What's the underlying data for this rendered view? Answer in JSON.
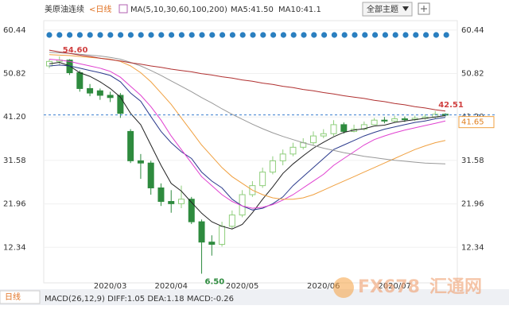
{
  "chart_data": {
    "type": "candlestick",
    "title": "美原油连续",
    "period": "<日线",
    "indicator": "MA(5,10,30,60,100,200)",
    "legend_texts": [
      "MA5:41.50",
      "MA10:41.1"
    ],
    "theme_button": "全部主题",
    "categories": [
      null,
      null,
      null,
      null,
      null,
      null,
      "2020/03",
      null,
      null,
      null,
      null,
      null,
      "2020/04",
      null,
      null,
      null,
      null,
      null,
      null,
      "2020/05",
      null,
      null,
      null,
      null,
      null,
      null,
      null,
      "2020/06",
      null,
      null,
      null,
      null,
      null,
      null,
      "2020/07",
      null,
      null,
      null,
      null,
      null
    ],
    "open": [
      52.5,
      53.5,
      53.8,
      51,
      47.5,
      47,
      46,
      46,
      38,
      31.5,
      31,
      25.5,
      22.5,
      22,
      23,
      18,
      13.5,
      13,
      17,
      19.5,
      24,
      26,
      29,
      31.5,
      33,
      34.5,
      35.5,
      37,
      37.5,
      39.5,
      38,
      38.5,
      39.5,
      40.5,
      40.3,
      40.8,
      40.6,
      40.9,
      41.2,
      41.8
    ],
    "high": [
      54,
      54.6,
      54,
      51.5,
      48.5,
      47.5,
      46.8,
      46.5,
      38.5,
      33,
      31.5,
      26.5,
      25,
      26,
      23.5,
      18.5,
      15,
      18,
      20.5,
      25,
      27,
      30,
      32.5,
      34,
      35.5,
      36.5,
      38,
      38.5,
      40.5,
      40,
      39.5,
      40.2,
      41,
      41.2,
      41.5,
      41.3,
      41.5,
      41.8,
      42.51,
      42
    ],
    "low": [
      52,
      52.8,
      50.5,
      46.8,
      45.8,
      45,
      44.5,
      41,
      31,
      27.5,
      24,
      21.5,
      20,
      21,
      17.5,
      6.5,
      10.5,
      12.5,
      16.5,
      19,
      23.5,
      25.5,
      28.5,
      30.5,
      32.5,
      34,
      35,
      36.5,
      37,
      37.5,
      37.8,
      38.2,
      39.5,
      39.8,
      40,
      40.1,
      40.3,
      40.6,
      40.9,
      41.3
    ],
    "close": [
      53.5,
      53.8,
      51,
      47.5,
      46.5,
      46,
      45.5,
      42,
      31.5,
      31,
      25.5,
      22.5,
      22,
      23,
      18,
      13.5,
      13,
      17,
      19.5,
      24,
      26,
      29,
      31.5,
      33,
      34.5,
      35.5,
      37,
      37.5,
      39.5,
      38,
      38.5,
      39.5,
      40.5,
      40.3,
      40.8,
      40.6,
      40.9,
      41.2,
      41.8,
      41.65
    ],
    "up_color": "#8fce7c",
    "down_color": "#2e8b3e",
    "series": [
      {
        "color": "#222222",
        "values": [
          53,
          53.3,
          52.5,
          51,
          50.2,
          49,
          47.5,
          45.6,
          42,
          39.5,
          35,
          30.5,
          26.5,
          24.8,
          22.3,
          19.9,
          18,
          17,
          16.4,
          17.4,
          20,
          23,
          25.7,
          28.7,
          30.8,
          32.6,
          34.3,
          35.6,
          36.8,
          37.8,
          38.3,
          38.6,
          39.2,
          39.4,
          40,
          40.3,
          40.6,
          40.9,
          41.2,
          41.5
        ]
      },
      {
        "color": "#2b3a8c",
        "values": [
          52.5,
          52.7,
          52.5,
          52,
          51.5,
          51,
          50.4,
          49,
          46.5,
          44.7,
          41.3,
          38,
          35.5,
          33.5,
          32,
          29,
          27,
          25.5,
          23,
          21.5,
          20.6,
          21,
          22,
          23.5,
          26,
          28,
          30,
          32,
          34,
          35,
          36,
          37,
          37.8,
          38.5,
          39,
          39.5,
          40,
          40.3,
          40.8,
          41.1
        ]
      },
      {
        "color": "#e040d0",
        "values": [
          54,
          53.8,
          53.5,
          53,
          52.5,
          52,
          51.3,
          50,
          48,
          46,
          43.5,
          40.5,
          37,
          34,
          31,
          28,
          26,
          24,
          22.5,
          21.5,
          21,
          21.2,
          21.8,
          22.8,
          24,
          25.5,
          27,
          28.5,
          30.5,
          32,
          33.5,
          35,
          36.2,
          37,
          37.7,
          38.3,
          38.8,
          39.3,
          39.8,
          40.3
        ]
      },
      {
        "color": "#f0a040",
        "values": [
          55,
          54.9,
          54.8,
          54.6,
          54.4,
          54.2,
          54,
          53.5,
          52.5,
          51,
          49,
          46.5,
          44,
          41,
          38,
          35,
          32.5,
          30,
          28,
          26.5,
          25,
          24,
          23.3,
          23,
          23,
          23.3,
          24,
          25,
          26,
          27,
          28,
          29,
          30,
          31,
          32,
          33,
          34,
          34.8,
          35.5,
          36
        ]
      },
      {
        "color": "#999999",
        "values": [
          55.5,
          55.4,
          55.3,
          55.1,
          54.9,
          54.7,
          54.4,
          54,
          53.3,
          52.5,
          51.5,
          50.4,
          49.2,
          48,
          46.8,
          45.5,
          44.3,
          43,
          41.8,
          40.7,
          39.6,
          38.6,
          37.7,
          36.9,
          36.2,
          35.5,
          34.9,
          34.3,
          33.8,
          33.3,
          32.9,
          32.5,
          32.2,
          31.9,
          31.6,
          31.4,
          31.2,
          31,
          30.9,
          30.8
        ]
      },
      {
        "color": "#b03030",
        "values": [
          56,
          55.6,
          55.3,
          54.9,
          54.6,
          54.2,
          53.9,
          53.6,
          53.2,
          52.9,
          52.5,
          52.2,
          51.8,
          51.5,
          51.2,
          50.8,
          50.5,
          50.1,
          49.8,
          49.4,
          49.1,
          48.7,
          48.4,
          48,
          47.7,
          47.3,
          47,
          46.6,
          46.3,
          45.9,
          45.6,
          45.3,
          44.9,
          44.6,
          44.2,
          43.9,
          43.5,
          43.2,
          42.8,
          42.5
        ]
      }
    ],
    "ylim": [
      5,
      62
    ],
    "yticks": [
      60.44,
      50.82,
      {
        "value": 41.2,
        "label": "41.20"
      },
      31.58,
      21.96,
      12.34
    ],
    "annotations": [
      {
        "value": 54.6,
        "label": "54.60"
      },
      {
        "value": 6.5,
        "label": "6.50"
      },
      {
        "value": 42.51,
        "label": "42.51"
      }
    ],
    "last_price": {
      "value": 41.65,
      "label": "41.65"
    },
    "bottom_period": "日线",
    "macd_text": "MACD(26,12,9) DIFF:1.05 DEA:1.18 MACD:-0.26",
    "watermark": [
      "FX678",
      "汇通网"
    ]
  }
}
